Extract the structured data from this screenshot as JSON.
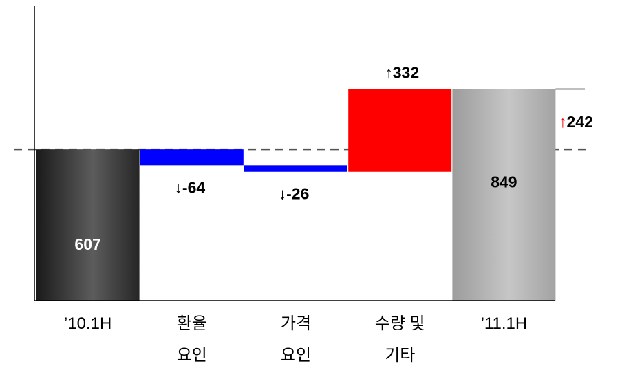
{
  "chart_data": {
    "type": "bar",
    "subtype": "waterfall",
    "categories": [
      [
        "’10.1H"
      ],
      [
        "환율",
        "요인"
      ],
      [
        "가격",
        "요인"
      ],
      [
        "수량 및",
        "기타"
      ],
      [
        "’11.1H"
      ]
    ],
    "bars": [
      {
        "kind": "total",
        "start": 0,
        "end": 607,
        "label": "607",
        "arrow": "",
        "color": "#333333"
      },
      {
        "kind": "delta",
        "start": 607,
        "end": 543,
        "label": "-64",
        "arrow": "↓",
        "color": "#0000ff"
      },
      {
        "kind": "delta",
        "start": 543,
        "end": 517,
        "label": "-26",
        "arrow": "↓",
        "color": "#0000ff"
      },
      {
        "kind": "delta",
        "start": 517,
        "end": 849,
        "label": "332",
        "arrow": "↑",
        "color": "#ff0000"
      },
      {
        "kind": "total",
        "start": 0,
        "end": 849,
        "label": "849",
        "arrow": "",
        "color": "#aaaaaa"
      }
    ],
    "change_annotation": {
      "arrow": "↑",
      "value": "242",
      "arrow_color": "#ff0000"
    },
    "reference_line": {
      "value": 607,
      "style": "dashed"
    },
    "ylim": [
      0,
      1158
    ],
    "grid": false,
    "legend": "none",
    "title": "",
    "xlabel": "",
    "ylabel": ""
  }
}
